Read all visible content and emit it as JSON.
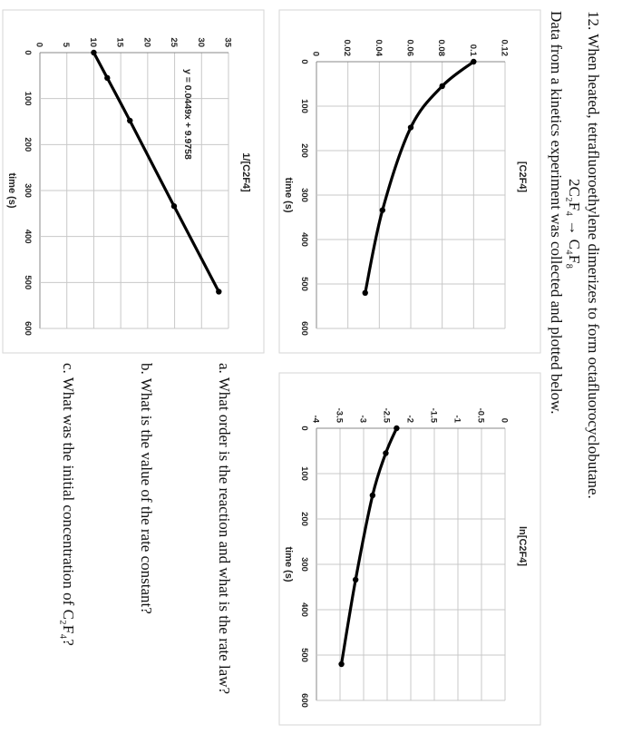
{
  "problem": {
    "number_line": "12. When heated, tetrafluoroethylene dimerizes to form octafluorocyclobutane.",
    "reaction": "2C₂F₄ → C₄F₈",
    "intro": "Data from a kinetics experiment was collected and plotted below."
  },
  "questions": {
    "a": "a. What order is the reaction and what is the rate law?",
    "b": "b. What is the value of the rate constant?",
    "c": "c. What was the initial concentration of C₂F₄?"
  },
  "chart_data": [
    {
      "type": "line",
      "ylabel": "[C2F4]",
      "xlabel": "time (s)",
      "xlim": [
        0,
        600
      ],
      "ylim": [
        0,
        0.12
      ],
      "x_ticks": [
        "0",
        "100",
        "200",
        "300",
        "400",
        "500",
        "600"
      ],
      "y_ticks": [
        "0",
        "0.02",
        "0.04",
        "0.06",
        "0.08",
        "0.1",
        "0.12"
      ],
      "x": [
        0,
        55,
        148,
        334,
        520
      ],
      "y": [
        0.1,
        0.08,
        0.06,
        0.042,
        0.031
      ],
      "grid": true
    },
    {
      "type": "line",
      "ylabel": "ln[C2F4]",
      "xlabel": "time (s)",
      "xlim": [
        0,
        600
      ],
      "ylim": [
        -4,
        0
      ],
      "x_ticks": [
        "0",
        "100",
        "200",
        "300",
        "400",
        "500",
        "600"
      ],
      "y_ticks": [
        "0",
        "-0.5",
        "-1",
        "-1.5",
        "-2",
        "-2.5",
        "-3",
        "-3.5",
        "-4"
      ],
      "x": [
        0,
        55,
        148,
        334,
        520
      ],
      "y": [
        -2.3,
        -2.53,
        -2.81,
        -3.17,
        -3.47
      ],
      "grid": true
    },
    {
      "type": "line",
      "ylabel": "1/[C2F4]",
      "xlabel": "time (s)",
      "xlim": [
        0,
        600
      ],
      "ylim": [
        0,
        35
      ],
      "x_ticks": [
        "0",
        "100",
        "200",
        "300",
        "400",
        "500",
        "600"
      ],
      "y_ticks": [
        "0",
        "5",
        "10",
        "15",
        "20",
        "25",
        "30",
        "35"
      ],
      "x": [
        0,
        55,
        148,
        334,
        520
      ],
      "y": [
        10,
        12.5,
        16.7,
        24.9,
        33.2
      ],
      "annotation": "y = 0.0449x + 9.9758",
      "grid": true
    }
  ]
}
